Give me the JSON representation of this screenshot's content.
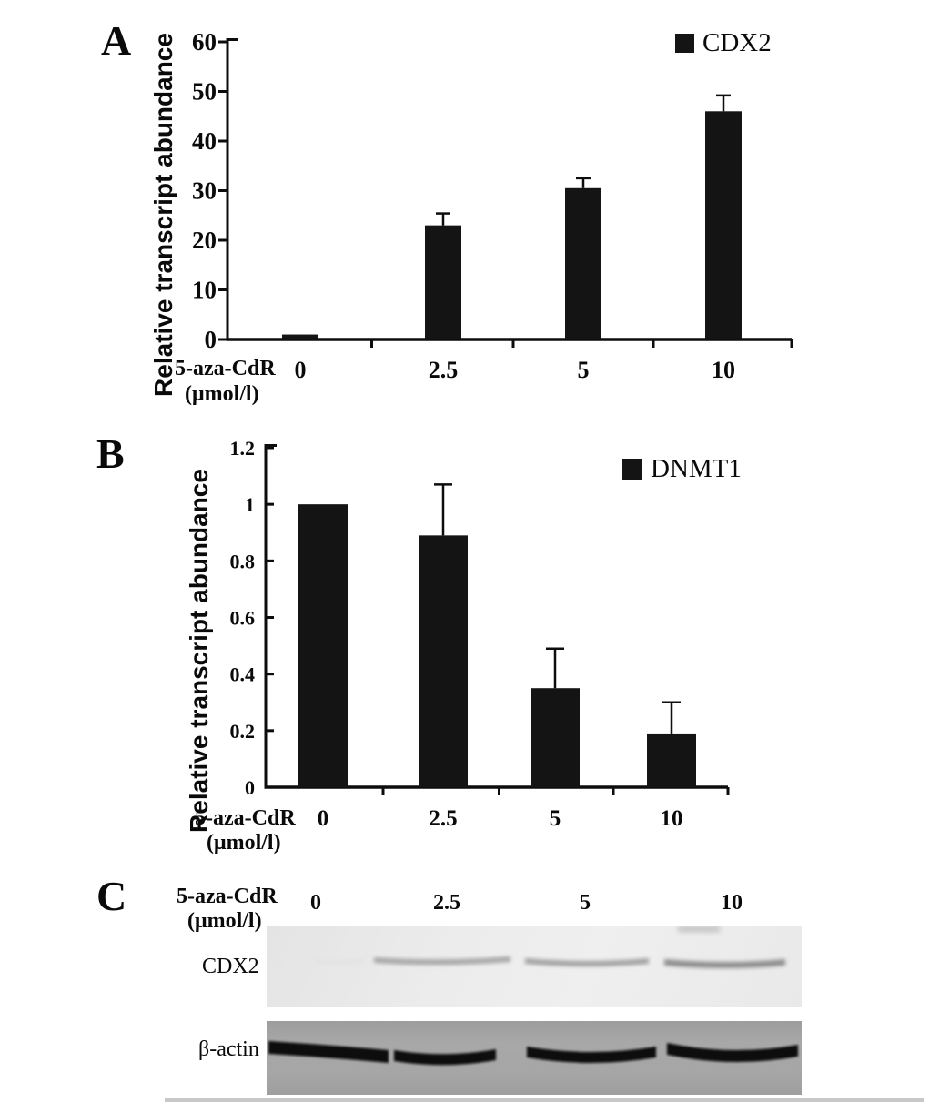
{
  "figure": {
    "background": "#ffffff",
    "ink_color": "#0d0d0d",
    "panels": [
      {
        "letter": "A"
      },
      {
        "letter": "B"
      },
      {
        "letter": "C"
      }
    ]
  },
  "chart_data": [
    {
      "panel": "A",
      "type": "bar",
      "legend": "CDX2",
      "legend_position": "top-right",
      "ylabel": "Relative transcript abundance",
      "xlabel_line1": "5-aza-CdR",
      "xlabel_line2": "(μmol/l)",
      "categories": [
        "0",
        "2.5",
        "5",
        "10"
      ],
      "values": [
        1,
        23,
        30.5,
        46
      ],
      "errors_plus": [
        0,
        2.4,
        2,
        3.2
      ],
      "yticks": [
        0,
        10,
        20,
        30,
        40,
        50,
        60
      ],
      "ylim": [
        0,
        60
      ],
      "grid": false,
      "bar_color": "#141414"
    },
    {
      "panel": "B",
      "type": "bar",
      "legend": "DNMT1",
      "legend_position": "top-right",
      "ylabel": "Relative transcript abundance",
      "xlabel_line1": "5-aza-CdR",
      "xlabel_line2": "(μmol/l)",
      "categories": [
        "0",
        "2.5",
        "5",
        "10"
      ],
      "values": [
        1,
        0.89,
        0.35,
        0.19
      ],
      "errors_plus": [
        0,
        0.18,
        0.14,
        0.11
      ],
      "yticks": [
        0,
        0.2,
        0.4,
        0.6,
        0.8,
        1,
        1.2
      ],
      "ylim": [
        0,
        1.2
      ],
      "grid": false,
      "bar_color": "#141414"
    },
    {
      "panel": "C",
      "type": "western_blot",
      "header_line1": "5-aza-CdR",
      "header_line2": "(μmol/l)",
      "lanes": [
        "0",
        "2.5",
        "5",
        "10"
      ],
      "rows": [
        {
          "label": "CDX2",
          "band_intensities": [
            0.05,
            0.55,
            0.6,
            0.75
          ]
        },
        {
          "label": "β-actin",
          "band_intensities": [
            1,
            1,
            1,
            1
          ]
        }
      ]
    }
  ]
}
